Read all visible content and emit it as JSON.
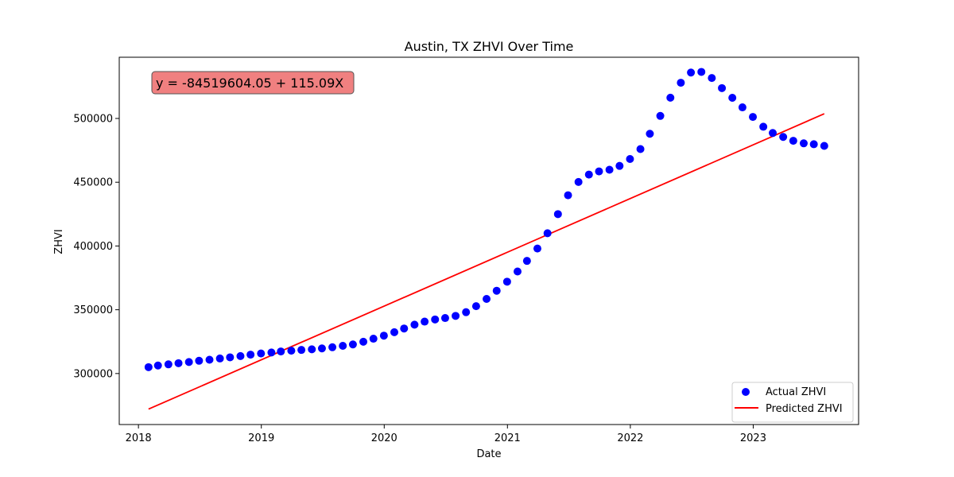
{
  "chart_data": {
    "type": "scatter",
    "title": "Austin, TX ZHVI Over Time",
    "xlabel": "Date",
    "ylabel": "ZHVI",
    "equation": "y = -84519604.05 + 115.09X",
    "equation_box_color": "#f08080",
    "xlim": [
      "2017-11-05",
      "2023-11-10"
    ],
    "ylim": [
      260000,
      548000
    ],
    "x_ticks": [
      "2018",
      "2019",
      "2020",
      "2021",
      "2022",
      "2023"
    ],
    "y_ticks": [
      300000,
      350000,
      400000,
      450000,
      500000
    ],
    "grid": false,
    "legend_position": "bottom-right",
    "series": [
      {
        "name": "Actual ZHVI",
        "kind": "scatter",
        "color": "#0000ff",
        "x": [
          "2018-01-31",
          "2018-02-28",
          "2018-03-31",
          "2018-04-30",
          "2018-05-31",
          "2018-06-30",
          "2018-07-31",
          "2018-08-31",
          "2018-09-30",
          "2018-10-31",
          "2018-11-30",
          "2018-12-31",
          "2019-01-31",
          "2019-02-28",
          "2019-03-31",
          "2019-04-30",
          "2019-05-31",
          "2019-06-30",
          "2019-07-31",
          "2019-08-31",
          "2019-09-30",
          "2019-10-31",
          "2019-11-30",
          "2019-12-31",
          "2020-01-31",
          "2020-02-29",
          "2020-03-31",
          "2020-04-30",
          "2020-05-31",
          "2020-06-30",
          "2020-07-31",
          "2020-08-31",
          "2020-09-30",
          "2020-10-31",
          "2020-11-30",
          "2020-12-31",
          "2021-01-31",
          "2021-02-28",
          "2021-03-31",
          "2021-04-30",
          "2021-05-31",
          "2021-06-30",
          "2021-07-31",
          "2021-08-31",
          "2021-09-30",
          "2021-10-31",
          "2021-11-30",
          "2021-12-31",
          "2022-01-31",
          "2022-02-28",
          "2022-03-31",
          "2022-04-30",
          "2022-05-31",
          "2022-06-30",
          "2022-07-31",
          "2022-08-31",
          "2022-09-30",
          "2022-10-31",
          "2022-11-30",
          "2022-12-31",
          "2023-01-31",
          "2023-02-28",
          "2023-03-31",
          "2023-04-30",
          "2023-05-31",
          "2023-06-30",
          "2023-07-31"
        ],
        "y": [
          305000,
          306300,
          307200,
          308100,
          309000,
          310000,
          310800,
          311800,
          312700,
          313700,
          314800,
          315700,
          316500,
          317300,
          317900,
          318500,
          319000,
          319700,
          320600,
          321700,
          322800,
          324900,
          327300,
          329700,
          332400,
          335300,
          338300,
          340700,
          342400,
          343500,
          345200,
          348100,
          352800,
          358500,
          364900,
          372000,
          380000,
          388300,
          398000,
          410000,
          425000,
          439800,
          450200,
          456000,
          458500,
          459800,
          462800,
          468200,
          476000,
          488000,
          502000,
          516300,
          528000,
          536000,
          536500,
          531700,
          523800,
          516200,
          508700,
          501200,
          493500,
          488600,
          485500,
          482500,
          480500,
          479800,
          478500
        ]
      },
      {
        "name": "Predicted ZHVI",
        "kind": "line",
        "color": "#ff0000",
        "x": [
          "2018-01-31",
          "2023-07-31"
        ],
        "y": [
          272100,
          503700
        ]
      }
    ]
  }
}
